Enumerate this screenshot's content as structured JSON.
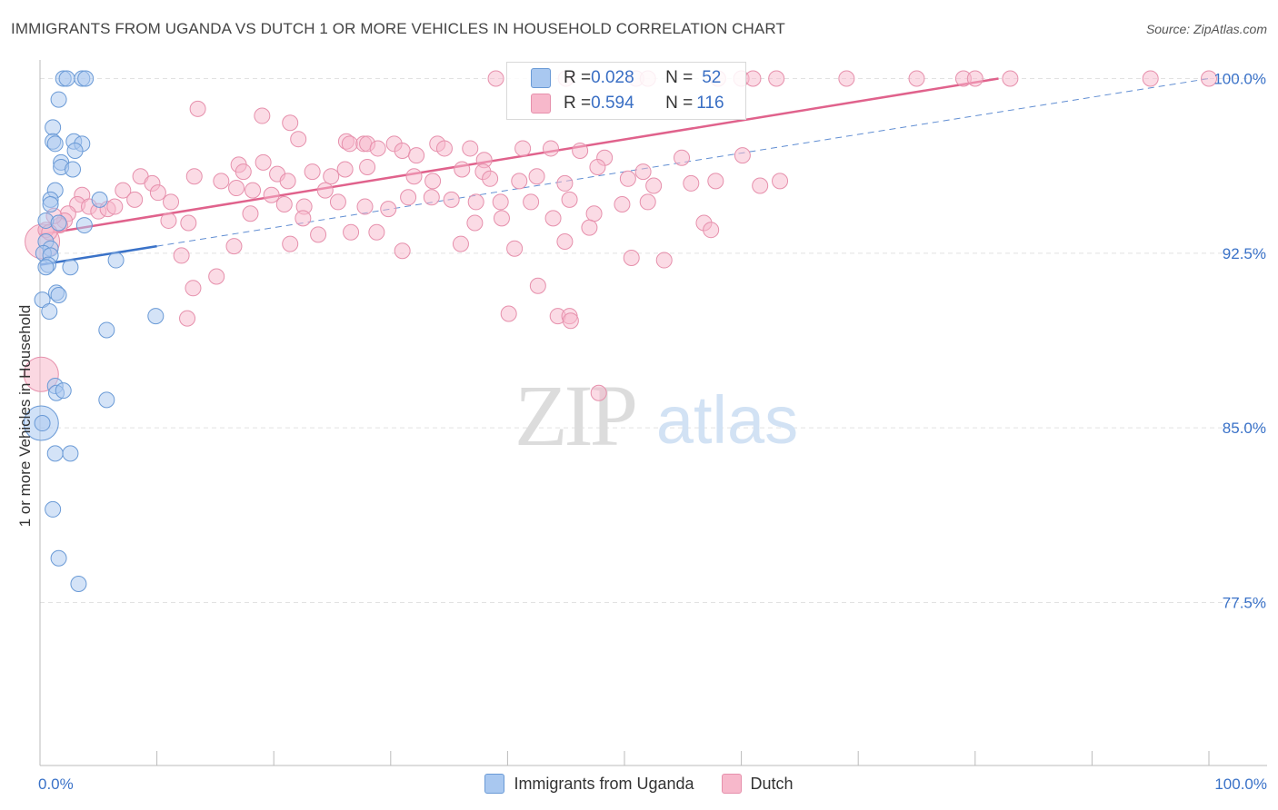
{
  "title": "IMMIGRANTS FROM UGANDA VS DUTCH 1 OR MORE VEHICLES IN HOUSEHOLD CORRELATION CHART",
  "source": "Source: ZipAtlas.com",
  "watermark": {
    "zip": "ZIP",
    "atlas": "atlas"
  },
  "stats": [
    {
      "r_label": "R = ",
      "r": "0.028",
      "n_label": "N = ",
      "n": "52",
      "color": "#a9c8f0"
    },
    {
      "r_label": "R = ",
      "r": "0.594",
      "n_label": "N = ",
      "n": "116",
      "color": "#f7b8cb"
    }
  ],
  "chart_data": {
    "type": "scatter",
    "title": "IMMIGRANTS FROM UGANDA VS DUTCH 1 OR MORE VEHICLES IN HOUSEHOLD CORRELATION CHART",
    "xlabel": "",
    "ylabel": "1 or more Vehicles in Household",
    "xlim": [
      0,
      100
    ],
    "ylim": [
      70.5,
      100.8
    ],
    "x_tick_labels": [
      {
        "value": 0,
        "label": "0.0%"
      },
      {
        "value": 100,
        "label": "100.0%"
      }
    ],
    "y_tick_labels": [
      {
        "value": 100,
        "label": "100.0%"
      },
      {
        "value": 92.5,
        "label": "92.5%"
      },
      {
        "value": 85,
        "label": "85.0%"
      },
      {
        "value": 77.5,
        "label": "77.5%"
      }
    ],
    "grid": true,
    "series": [
      {
        "name": "Immigrants from Uganda",
        "color": "#a9c8f0",
        "stroke": "#6a9ad6",
        "line_color": "#3a72c8",
        "trend_solid": [
          [
            0,
            92.0
          ],
          [
            10,
            92.8
          ]
        ],
        "trend_dashed": [
          [
            10,
            92.8
          ],
          [
            100,
            100.0
          ]
        ],
        "points": [
          [
            2.0,
            100.0
          ],
          [
            2.3,
            100.0
          ],
          [
            3.6,
            100.0
          ],
          [
            3.9,
            100.0
          ],
          [
            1.6,
            99.1
          ],
          [
            1.1,
            97.9
          ],
          [
            1.1,
            97.3
          ],
          [
            1.3,
            97.2
          ],
          [
            2.9,
            97.3
          ],
          [
            3.6,
            97.2
          ],
          [
            3.0,
            96.9
          ],
          [
            1.8,
            96.4
          ],
          [
            1.8,
            96.2
          ],
          [
            2.8,
            96.1
          ],
          [
            1.3,
            95.2
          ],
          [
            0.9,
            94.8
          ],
          [
            0.9,
            94.6
          ],
          [
            5.1,
            94.8
          ],
          [
            0.5,
            93.9
          ],
          [
            1.6,
            93.8
          ],
          [
            3.8,
            93.7
          ],
          [
            0.5,
            93.0
          ],
          [
            0.9,
            92.7
          ],
          [
            0.3,
            92.5
          ],
          [
            0.9,
            92.4
          ],
          [
            6.5,
            92.2
          ],
          [
            0.7,
            92.0
          ],
          [
            2.6,
            91.9
          ],
          [
            0.5,
            91.9
          ],
          [
            1.4,
            90.8
          ],
          [
            1.6,
            90.7
          ],
          [
            0.2,
            90.5
          ],
          [
            0.8,
            90.0
          ],
          [
            9.9,
            89.8
          ],
          [
            5.7,
            89.2
          ],
          [
            1.3,
            86.8
          ],
          [
            1.4,
            86.5
          ],
          [
            2.0,
            86.6
          ],
          [
            5.7,
            86.2
          ],
          [
            0.2,
            85.2
          ],
          [
            1.3,
            83.9
          ],
          [
            2.6,
            83.9
          ],
          [
            1.1,
            81.5
          ],
          [
            1.6,
            79.4
          ],
          [
            3.3,
            78.3
          ]
        ],
        "big_points": [
          [
            0.1,
            85.2
          ]
        ]
      },
      {
        "name": "Dutch",
        "color": "#f7b8cb",
        "stroke": "#e690ac",
        "line_color": "#e0628c",
        "trend_solid": [
          [
            0,
            93.3
          ],
          [
            82,
            100.0
          ]
        ],
        "points": [
          [
            39,
            100
          ],
          [
            45,
            100
          ],
          [
            51,
            100
          ],
          [
            52,
            100
          ],
          [
            58,
            100
          ],
          [
            60,
            100
          ],
          [
            61,
            100
          ],
          [
            63,
            100
          ],
          [
            69,
            100
          ],
          [
            75,
            100
          ],
          [
            79,
            100
          ],
          [
            80,
            100
          ],
          [
            83,
            100
          ],
          [
            95,
            100
          ],
          [
            100,
            100
          ],
          [
            13.5,
            98.7
          ],
          [
            19,
            98.4
          ],
          [
            21.4,
            98.1
          ],
          [
            22.1,
            97.4
          ],
          [
            26.2,
            97.3
          ],
          [
            26.5,
            97.2
          ],
          [
            27.7,
            97.2
          ],
          [
            28.0,
            97.2
          ],
          [
            28.9,
            97.0
          ],
          [
            30.3,
            97.2
          ],
          [
            31.0,
            96.9
          ],
          [
            32.2,
            96.7
          ],
          [
            34.0,
            97.2
          ],
          [
            34.6,
            97.0
          ],
          [
            36.8,
            97.0
          ],
          [
            38.0,
            96.5
          ],
          [
            41.3,
            97.0
          ],
          [
            43.7,
            97.0
          ],
          [
            46.2,
            96.9
          ],
          [
            48.3,
            96.6
          ],
          [
            51.6,
            96.0
          ],
          [
            54.9,
            96.6
          ],
          [
            60.1,
            96.7
          ],
          [
            17.0,
            96.3
          ],
          [
            17.4,
            96.0
          ],
          [
            19.1,
            96.4
          ],
          [
            20.3,
            95.9
          ],
          [
            21.2,
            95.6
          ],
          [
            23.3,
            96.0
          ],
          [
            24.9,
            95.8
          ],
          [
            26.1,
            96.1
          ],
          [
            28.0,
            96.2
          ],
          [
            32.0,
            95.8
          ],
          [
            33.6,
            95.6
          ],
          [
            36.1,
            96.1
          ],
          [
            37.9,
            96.0
          ],
          [
            38.5,
            95.7
          ],
          [
            41.0,
            95.6
          ],
          [
            42.5,
            95.8
          ],
          [
            44.9,
            95.5
          ],
          [
            47.7,
            96.2
          ],
          [
            50.3,
            95.7
          ],
          [
            52.5,
            95.4
          ],
          [
            55.7,
            95.5
          ],
          [
            57.8,
            95.6
          ],
          [
            61.6,
            95.4
          ],
          [
            63.3,
            95.6
          ],
          [
            13.2,
            95.8
          ],
          [
            15.5,
            95.6
          ],
          [
            16.8,
            95.3
          ],
          [
            18.2,
            95.2
          ],
          [
            19.8,
            95.0
          ],
          [
            20.9,
            94.6
          ],
          [
            22.6,
            94.5
          ],
          [
            24.4,
            95.2
          ],
          [
            25.5,
            94.7
          ],
          [
            27.8,
            94.5
          ],
          [
            29.8,
            94.4
          ],
          [
            31.5,
            94.9
          ],
          [
            33.5,
            94.9
          ],
          [
            35.2,
            94.8
          ],
          [
            37.3,
            94.7
          ],
          [
            39.4,
            94.7
          ],
          [
            42.0,
            94.7
          ],
          [
            43.9,
            94.0
          ],
          [
            45.3,
            94.8
          ],
          [
            47.4,
            94.2
          ],
          [
            49.8,
            94.6
          ],
          [
            52.0,
            94.7
          ],
          [
            8.6,
            95.8
          ],
          [
            9.6,
            95.5
          ],
          [
            7.1,
            95.2
          ],
          [
            8.1,
            94.8
          ],
          [
            10.1,
            95.1
          ],
          [
            11.2,
            94.7
          ],
          [
            3.6,
            95.0
          ],
          [
            3.2,
            94.6
          ],
          [
            4.2,
            94.5
          ],
          [
            5.0,
            94.3
          ],
          [
            5.8,
            94.4
          ],
          [
            6.4,
            94.5
          ],
          [
            2.4,
            94.2
          ],
          [
            2.1,
            93.9
          ],
          [
            1.7,
            93.7
          ],
          [
            1.2,
            94.1
          ],
          [
            0.5,
            93.5
          ],
          [
            0.8,
            93.4
          ],
          [
            11.0,
            93.9
          ],
          [
            12.7,
            93.8
          ],
          [
            18.0,
            94.2
          ],
          [
            22.5,
            94.0
          ],
          [
            37.2,
            93.8
          ],
          [
            39.5,
            94.0
          ],
          [
            47.0,
            93.6
          ],
          [
            56.8,
            93.8
          ],
          [
            57.4,
            93.5
          ],
          [
            12.1,
            92.4
          ],
          [
            16.6,
            92.8
          ],
          [
            21.4,
            92.9
          ],
          [
            23.8,
            93.3
          ],
          [
            26.6,
            93.4
          ],
          [
            28.8,
            93.4
          ],
          [
            31.0,
            92.6
          ],
          [
            36.0,
            92.9
          ],
          [
            40.6,
            92.7
          ],
          [
            44.9,
            93.0
          ],
          [
            50.6,
            92.3
          ],
          [
            53.4,
            92.2
          ],
          [
            42.6,
            91.1
          ],
          [
            13.1,
            91.0
          ],
          [
            15.1,
            91.5
          ],
          [
            40.1,
            89.9
          ],
          [
            44.3,
            89.8
          ],
          [
            45.3,
            89.8
          ],
          [
            45.4,
            89.6
          ],
          [
            12.6,
            89.7
          ],
          [
            47.8,
            86.5
          ]
        ],
        "big_points": [
          [
            0.2,
            93.0
          ],
          [
            0.1,
            87.3
          ]
        ]
      }
    ],
    "legend": [
      "Immigrants from Uganda",
      "Dutch"
    ],
    "legend_position": "bottom-center"
  }
}
